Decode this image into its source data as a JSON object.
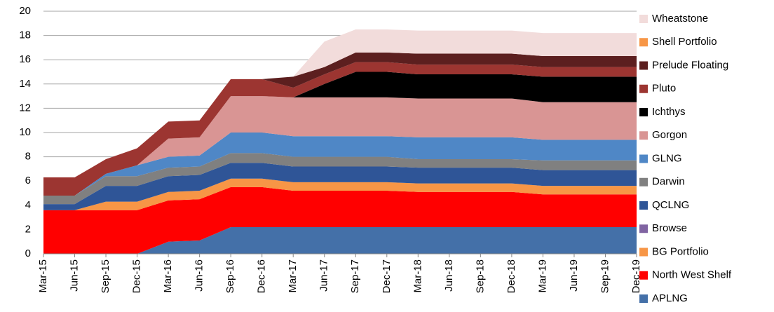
{
  "chart_data": {
    "type": "stacked_area",
    "categories": [
      "Mar-15",
      "Jun-15",
      "Sep-15",
      "Dec-15",
      "Mar-16",
      "Jun-16",
      "Sep-16",
      "Dec-16",
      "Mar-17",
      "Jun-17",
      "Sep-17",
      "Dec-17",
      "Mar-18",
      "Jun-18",
      "Sep-18",
      "Dec-18",
      "Mar-19",
      "Jun-19",
      "Sep-19",
      "Dec-19"
    ],
    "ylim": [
      0,
      20
    ],
    "yticks": [
      0,
      2,
      4,
      6,
      8,
      10,
      12,
      14,
      16,
      18,
      20
    ],
    "grid": true,
    "legend": "right",
    "series": [
      {
        "name": "APLNG",
        "color": "#4470a8",
        "values": [
          0,
          0,
          0,
          0,
          1.0,
          1.1,
          2.2,
          2.2,
          2.2,
          2.2,
          2.2,
          2.2,
          2.2,
          2.2,
          2.2,
          2.2,
          2.2,
          2.2,
          2.2,
          2.2
        ]
      },
      {
        "name": "North West Shelf",
        "color": "#ff0000",
        "values": [
          3.6,
          3.6,
          3.6,
          3.6,
          3.4,
          3.4,
          3.3,
          3.3,
          3.0,
          3.0,
          3.0,
          3.0,
          2.9,
          2.9,
          2.9,
          2.9,
          2.7,
          2.7,
          2.7,
          2.7
        ]
      },
      {
        "name": "BG Portfolio",
        "color": "#f79646",
        "values": [
          0,
          0,
          0.7,
          0.7,
          0.7,
          0.7,
          0.7,
          0.7,
          0.7,
          0.7,
          0.7,
          0.7,
          0.7,
          0.7,
          0.7,
          0.7,
          0.7,
          0.7,
          0.7,
          0.7
        ]
      },
      {
        "name": "Browse",
        "color": "#8064a2",
        "values": [
          0,
          0,
          0,
          0,
          0,
          0,
          0,
          0,
          0,
          0,
          0,
          0,
          0,
          0,
          0,
          0,
          0,
          0,
          0,
          0
        ]
      },
      {
        "name": "QCLNG",
        "color": "#2f5597",
        "values": [
          0.5,
          0.5,
          1.3,
          1.3,
          1.3,
          1.3,
          1.3,
          1.3,
          1.3,
          1.3,
          1.3,
          1.3,
          1.3,
          1.3,
          1.3,
          1.3,
          1.3,
          1.3,
          1.3,
          1.3
        ]
      },
      {
        "name": "Darwin",
        "color": "#808080",
        "values": [
          0.7,
          0.7,
          0.8,
          0.8,
          0.7,
          0.7,
          0.8,
          0.8,
          0.8,
          0.8,
          0.8,
          0.8,
          0.7,
          0.7,
          0.7,
          0.7,
          0.8,
          0.8,
          0.8,
          0.8
        ]
      },
      {
        "name": "GLNG",
        "color": "#4f87c6",
        "values": [
          0,
          0,
          0.2,
          0.9,
          0.9,
          0.9,
          1.7,
          1.7,
          1.7,
          1.7,
          1.7,
          1.7,
          1.8,
          1.8,
          1.8,
          1.8,
          1.7,
          1.7,
          1.7,
          1.7
        ]
      },
      {
        "name": "Gorgon",
        "color": "#d99594",
        "values": [
          0,
          0,
          0,
          0,
          1.5,
          1.5,
          3.0,
          3.0,
          3.2,
          3.2,
          3.2,
          3.2,
          3.2,
          3.2,
          3.2,
          3.2,
          3.1,
          3.1,
          3.1,
          3.1
        ]
      },
      {
        "name": "Ichthys",
        "color": "#000000",
        "values": [
          0,
          0,
          0,
          0,
          0,
          0,
          0,
          0,
          0,
          1.1,
          2.1,
          2.1,
          2.0,
          2.0,
          2.0,
          2.0,
          2.1,
          2.1,
          2.1,
          2.1
        ]
      },
      {
        "name": "Pluto",
        "color": "#9c3531",
        "values": [
          1.5,
          1.5,
          1.2,
          1.4,
          1.4,
          1.4,
          1.4,
          1.4,
          0.8,
          0.8,
          0.8,
          0.8,
          0.8,
          0.8,
          0.8,
          0.8,
          0.8,
          0.8,
          0.8,
          0.8
        ]
      },
      {
        "name": "Prelude Floating",
        "color": "#5c1f1f",
        "values": [
          0,
          0,
          0,
          0,
          0,
          0,
          0,
          0,
          0.9,
          0.6,
          0.8,
          0.8,
          0.9,
          0.9,
          0.9,
          0.9,
          0.9,
          0.9,
          0.9,
          0.9
        ]
      },
      {
        "name": "Shell Portfolio",
        "color": "#f79646",
        "values": [
          0,
          0,
          0,
          0,
          0,
          0,
          0,
          0,
          0,
          0,
          0,
          0,
          0,
          0,
          0,
          0,
          0,
          0,
          0,
          0
        ]
      },
      {
        "name": "Wheatstone",
        "color": "#f2dcdb",
        "values": [
          0,
          0,
          0,
          0,
          0,
          0,
          0,
          0,
          0,
          2.1,
          1.9,
          1.9,
          1.9,
          1.9,
          1.9,
          1.9,
          1.9,
          1.9,
          1.9,
          1.9
        ]
      }
    ]
  }
}
